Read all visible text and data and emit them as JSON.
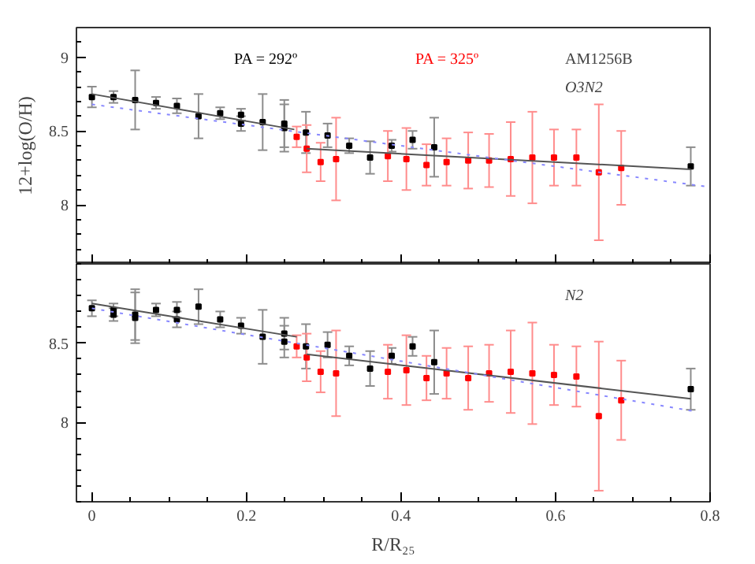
{
  "chart_data": [
    {
      "type": "scatter",
      "xlim": [
        -0.02,
        0.8
      ],
      "ylim": [
        7.6,
        9.2
      ],
      "xticks": [
        0,
        0.2,
        0.4,
        0.6,
        0.8
      ],
      "yticks": [
        8,
        8.5,
        9
      ],
      "tick_labels": "y",
      "ylabel": "12+log(O/H)",
      "grid": false,
      "legend": "top",
      "annotations": [
        "AM1256B",
        "O3N2"
      ],
      "series": [
        {
          "name": "PA = 292º",
          "color": "#000000",
          "marker": "square",
          "x": [
            0,
            0.028,
            0.056,
            0.083,
            0.11,
            0.138,
            0.166,
            0.193,
            0.193,
            0.221,
            0.249,
            0.249,
            0.277,
            0.305,
            0.333,
            0.36,
            0.388,
            0.415,
            0.443,
            0.775
          ],
          "values": [
            8.73,
            8.73,
            8.71,
            8.69,
            8.67,
            8.6,
            8.62,
            8.61,
            8.55,
            8.56,
            8.55,
            8.52,
            8.49,
            8.47,
            8.4,
            8.32,
            8.4,
            8.44,
            8.39,
            8.26
          ],
          "errors": [
            0.07,
            0.04,
            0.2,
            0.04,
            0.05,
            0.15,
            0.04,
            0.04,
            0.05,
            0.19,
            0.16,
            0.16,
            0.14,
            0.08,
            0.05,
            0.11,
            0.04,
            0.06,
            0.2,
            0.13
          ]
        },
        {
          "name": "PA = 325º",
          "color": "#ff0000",
          "marker": "square",
          "x": [
            0.265,
            0.278,
            0.296,
            0.316,
            0.383,
            0.407,
            0.433,
            0.459,
            0.487,
            0.514,
            0.542,
            0.57,
            0.598,
            0.627,
            0.656,
            0.685
          ],
          "values": [
            8.46,
            8.38,
            8.29,
            8.31,
            8.33,
            8.31,
            8.27,
            8.29,
            8.3,
            8.3,
            8.31,
            8.32,
            8.32,
            8.32,
            8.22,
            8.25
          ],
          "errors": [
            0.07,
            0.16,
            0.13,
            0.28,
            0.17,
            0.21,
            0.14,
            0.16,
            0.19,
            0.18,
            0.25,
            0.31,
            0.19,
            0.19,
            0.46,
            0.25
          ]
        },
        {
          "color": "#555555",
          "type": "line",
          "line_style": "solid",
          "x": [
            0,
            0.262
          ],
          "values": [
            8.75,
            8.51
          ]
        },
        {
          "color": "#555555",
          "type": "line",
          "line_style": "solid",
          "x": [
            0.278,
            0.775
          ],
          "values": [
            8.38,
            8.24
          ]
        },
        {
          "color": "#8888ff",
          "type": "line",
          "line_style": "dotted",
          "x": [
            0,
            0.8
          ],
          "values": [
            8.68,
            8.12
          ]
        }
      ]
    },
    {
      "type": "scatter",
      "xlim": [
        -0.02,
        0.8
      ],
      "ylim": [
        7.5,
        9.0
      ],
      "xticks": [
        0,
        0.2,
        0.4,
        0.6,
        0.8
      ],
      "yticks": [
        8,
        8.5
      ],
      "xlabel": "R/R₂₅",
      "grid": false,
      "legend": false,
      "annotations": [
        "N2"
      ],
      "series": [
        {
          "color": "#000000",
          "marker": "square",
          "x": [
            0,
            0.028,
            0.028,
            0.056,
            0.056,
            0.083,
            0.11,
            0.11,
            0.138,
            0.166,
            0.193,
            0.221,
            0.249,
            0.249,
            0.277,
            0.305,
            0.333,
            0.36,
            0.388,
            0.415,
            0.443,
            0.775
          ],
          "values": [
            8.72,
            8.71,
            8.68,
            8.68,
            8.66,
            8.71,
            8.71,
            8.65,
            8.73,
            8.65,
            8.61,
            8.54,
            8.56,
            8.51,
            8.48,
            8.49,
            8.42,
            8.34,
            8.42,
            8.48,
            8.38,
            8.21
          ],
          "errors": [
            0.05,
            0.04,
            0.04,
            0.16,
            0.16,
            0.04,
            0.05,
            0.05,
            0.11,
            0.05,
            0.05,
            0.17,
            0.1,
            0.1,
            0.14,
            0.08,
            0.06,
            0.11,
            0.05,
            0.06,
            0.2,
            0.13
          ]
        },
        {
          "color": "#ff0000",
          "marker": "square",
          "x": [
            0.265,
            0.278,
            0.296,
            0.316,
            0.383,
            0.407,
            0.433,
            0.459,
            0.487,
            0.514,
            0.542,
            0.57,
            0.598,
            0.627,
            0.656,
            0.685
          ],
          "values": [
            8.48,
            8.41,
            8.32,
            8.31,
            8.32,
            8.33,
            8.28,
            8.31,
            8.28,
            8.31,
            8.32,
            8.31,
            8.3,
            8.29,
            8.04,
            8.14
          ],
          "errors": [
            0.07,
            0.15,
            0.13,
            0.27,
            0.17,
            0.22,
            0.14,
            0.16,
            0.2,
            0.18,
            0.26,
            0.32,
            0.19,
            0.19,
            0.47,
            0.25
          ]
        },
        {
          "color": "#555555",
          "type": "line",
          "line_style": "solid",
          "x": [
            0,
            0.265
          ],
          "values": [
            8.75,
            8.54
          ]
        },
        {
          "color": "#555555",
          "type": "line",
          "line_style": "solid",
          "x": [
            0.278,
            0.775
          ],
          "values": [
            8.43,
            8.15
          ]
        },
        {
          "color": "#8888ff",
          "type": "line",
          "line_style": "dotted",
          "x": [
            0,
            0.78
          ],
          "values": [
            8.72,
            8.07
          ]
        }
      ]
    }
  ]
}
